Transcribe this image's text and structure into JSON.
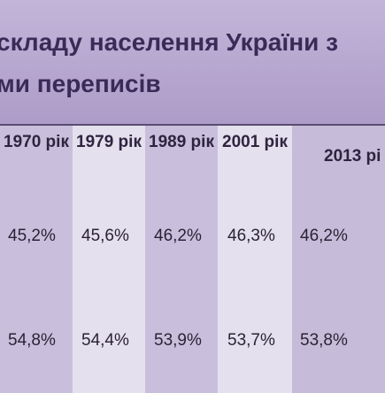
{
  "title": {
    "lines": [
      "складу населення України з",
      "ми переписів"
    ]
  },
  "table": {
    "header": [
      "1970 рік",
      "1979 рік",
      "1989 рік",
      "2001 рік",
      "2013 рі"
    ],
    "rows": [
      [
        "45,2%",
        "45,6%",
        "46,2%",
        "46,3%",
        "46,2%"
      ],
      [
        "54,8%",
        "54,4%",
        "53,9%",
        "53,7%",
        "53,8%"
      ]
    ]
  }
}
